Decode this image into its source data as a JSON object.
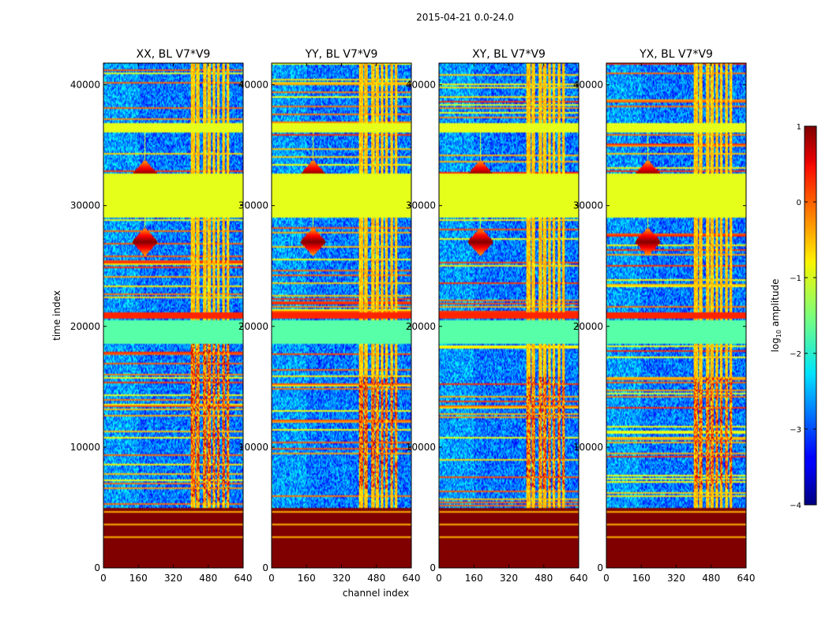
{
  "chart_data": {
    "type": "heatmap",
    "suptitle": "2015-04-21 0.0-24.0",
    "xlabel": "channel index",
    "ylabel": "time index",
    "colorbar_label": "log10 amplitude",
    "colorbar_label_parts": {
      "base": "log",
      "sub": "10",
      "rest": " amplitude"
    },
    "colormap": "jet",
    "clim": [
      -4,
      1
    ],
    "colorbar_ticks": [
      1,
      0,
      -1,
      -2,
      -3,
      -4
    ],
    "colorbar_tick_labels": [
      "1",
      "0",
      "−1",
      "−2",
      "−3",
      "−4"
    ],
    "xlim": [
      0,
      640
    ],
    "ylim": [
      0,
      41800
    ],
    "xticks": [
      0,
      160,
      320,
      480,
      640
    ],
    "xtick_labels": [
      "0",
      "160",
      "320",
      "480",
      "640"
    ],
    "yticks": [
      0,
      10000,
      20000,
      30000,
      40000
    ],
    "ytick_labels": [
      "0",
      "10000",
      "20000",
      "30000",
      "40000"
    ],
    "panels": [
      {
        "title": "XX, BL V7*V9",
        "burst_time_range": [
          5500,
          18500
        ],
        "burst_peak": 0.95
      },
      {
        "title": "YY, BL V7*V9",
        "burst_time_range": [
          6500,
          15800
        ],
        "burst_peak": 0.9
      },
      {
        "title": "XY, BL V7*V9",
        "burst_time_range": [
          6500,
          15800
        ],
        "burst_peak": 0.85
      },
      {
        "title": "YX, BL V7*V9",
        "burst_time_range": [
          6500,
          15800
        ],
        "burst_peak": 0.85
      }
    ],
    "background_level": -2.8,
    "flagged_time_ranges": [
      {
        "range": [
          0,
          5000
        ],
        "value": 1.0
      },
      {
        "range": [
          29000,
          32700
        ],
        "value": -1.0
      },
      {
        "range": [
          36000,
          36800
        ],
        "value": -1.0
      },
      {
        "range": [
          20700,
          21200
        ],
        "value": 0.2
      },
      {
        "range": [
          18500,
          20500
        ],
        "value": -1.7
      }
    ],
    "rfi_channel_ranges": [
      [
        400,
        420
      ],
      [
        425,
        440
      ],
      [
        455,
        470
      ],
      [
        478,
        492
      ],
      [
        500,
        512
      ],
      [
        520,
        530
      ],
      [
        545,
        555
      ],
      [
        565,
        575
      ]
    ],
    "transient_events": [
      {
        "time": 27000,
        "channel": 190,
        "value": 1.0
      },
      {
        "time": 32600,
        "channel": 190,
        "value": 1.0
      }
    ],
    "colors": {
      "background": "#ffffff",
      "axes": "#000000"
    }
  }
}
